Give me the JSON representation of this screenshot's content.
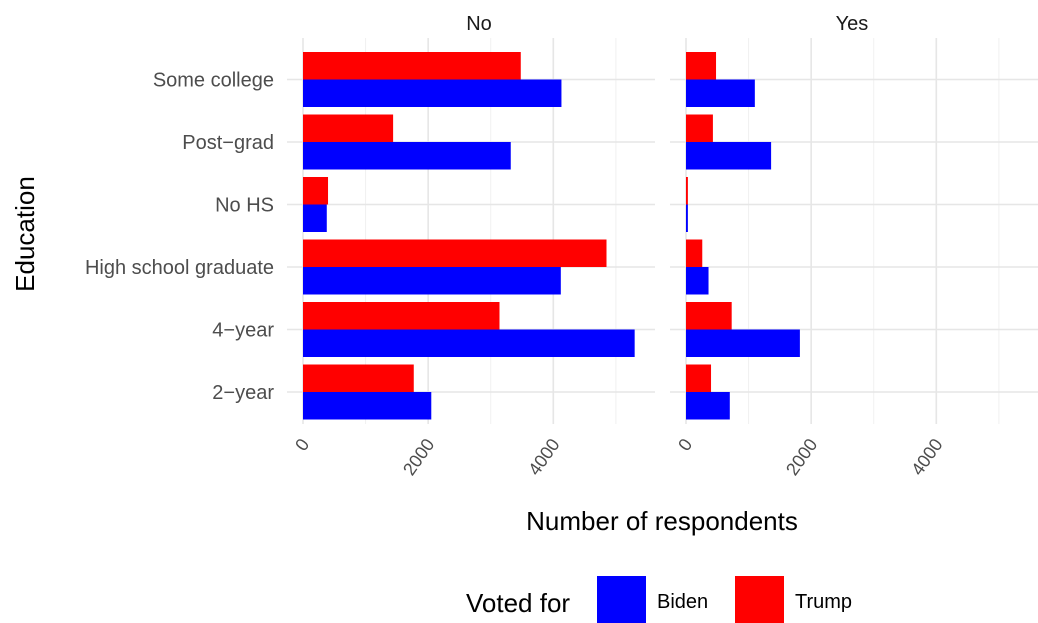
{
  "chart_data": {
    "type": "bar",
    "orientation": "horizontal",
    "facet_variable_values": [
      "No",
      "Yes"
    ],
    "categories": [
      "2−year",
      "4−year",
      "High school graduate",
      "No HS",
      "Post−grad",
      "Some college"
    ],
    "xlabel": "Number of respondents",
    "ylabel": "Education",
    "xlim": [
      0,
      5400
    ],
    "x_ticks": [
      0,
      2000,
      4000
    ],
    "x_tick_labels": [
      "0",
      "2000",
      "4000"
    ],
    "grid": true,
    "legend": {
      "title": "Voted for",
      "position": "bottom",
      "entries": [
        "Biden",
        "Trump"
      ]
    },
    "colors": {
      "Biden": "#0000FF",
      "Trump": "#FF0000"
    },
    "facets": [
      {
        "title": "No",
        "series": [
          {
            "name": "Biden",
            "values": [
              2050,
              5300,
              4120,
              380,
              3320,
              4130
            ]
          },
          {
            "name": "Trump",
            "values": [
              1770,
              3140,
              4850,
              400,
              1440,
              3480
            ]
          }
        ]
      },
      {
        "title": "Yes",
        "series": [
          {
            "name": "Biden",
            "values": [
              700,
              1820,
              360,
              30,
              1360,
              1100
            ]
          },
          {
            "name": "Trump",
            "values": [
              400,
              730,
              260,
              30,
              430,
              480
            ]
          }
        ]
      }
    ]
  }
}
